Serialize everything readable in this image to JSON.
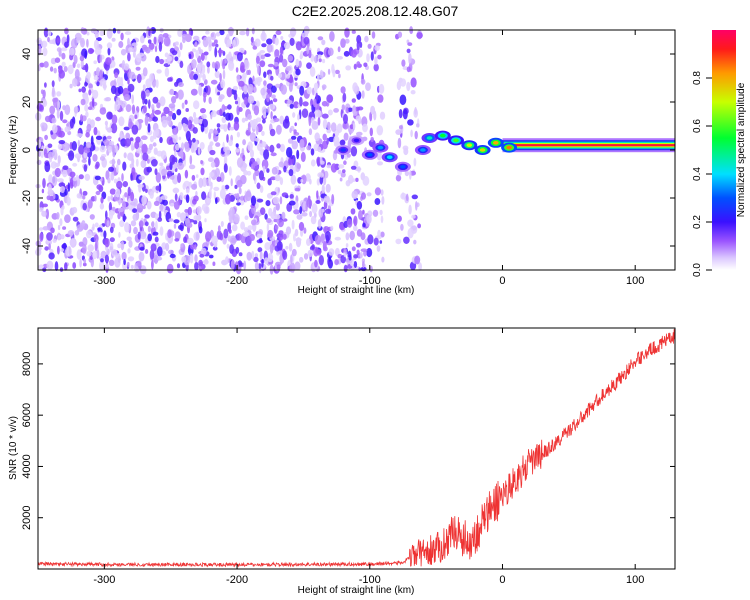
{
  "title": "C2E2.2025.208.12.48.G07",
  "chart_data": [
    {
      "type": "heatmap",
      "xlabel": "Height of straight line (km)",
      "ylabel": "Frequency (Hz)",
      "xlim": [
        -350,
        130
      ],
      "ylim": [
        -50,
        50
      ],
      "xticks": [
        "-300",
        "-200",
        "-100",
        "0",
        "100"
      ],
      "xtick_values": [
        -300,
        -200,
        -100,
        0,
        100
      ],
      "yticks": [
        "-40",
        "-20",
        "0",
        "20",
        "40"
      ],
      "ytick_values": [
        -40,
        -20,
        0,
        20,
        40
      ],
      "colorbar": {
        "label": "Normalized spectral amplitude",
        "range": [
          0,
          1
        ],
        "ticks": [
          "0.0",
          "0.2",
          "0.4",
          "0.6",
          "0.8"
        ],
        "tick_values": [
          0,
          0.2,
          0.4,
          0.6,
          0.8
        ],
        "colormap": "rainbow"
      },
      "features": {
        "noise_region_x": [
          -350,
          -62
        ],
        "signal_onset_x": -125,
        "stable_tone_x": [
          0,
          130
        ],
        "stable_tone_freq": 2,
        "stable_tone_amplitude": 0.95
      },
      "ridge": [
        {
          "x": -120,
          "f": 0,
          "a": 0.25
        },
        {
          "x": -110,
          "f": 4,
          "a": 0.2
        },
        {
          "x": -100,
          "f": -2,
          "a": 0.3
        },
        {
          "x": -92,
          "f": 1,
          "a": 0.35
        },
        {
          "x": -85,
          "f": -3,
          "a": 0.4
        },
        {
          "x": -75,
          "f": -7,
          "a": 0.3
        },
        {
          "x": -60,
          "f": 0,
          "a": 0.35
        },
        {
          "x": -55,
          "f": 5,
          "a": 0.45
        },
        {
          "x": -45,
          "f": 6,
          "a": 0.55
        },
        {
          "x": -35,
          "f": 4,
          "a": 0.6
        },
        {
          "x": -25,
          "f": 2,
          "a": 0.7
        },
        {
          "x": -15,
          "f": 0,
          "a": 0.75
        },
        {
          "x": -5,
          "f": 3,
          "a": 0.8
        },
        {
          "x": 5,
          "f": 1,
          "a": 0.85
        }
      ]
    },
    {
      "type": "line",
      "xlabel": "Height of straight line (km)",
      "ylabel": "SNR (10 * v/v)",
      "xlim": [
        -350,
        130
      ],
      "ylim": [
        0,
        9400
      ],
      "xticks": [
        "-300",
        "-200",
        "-100",
        "0",
        "100"
      ],
      "xtick_values": [
        -300,
        -200,
        -100,
        0,
        100
      ],
      "yticks": [
        "2000",
        "4000",
        "6000",
        "8000"
      ],
      "ytick_values": [
        2000,
        4000,
        6000,
        8000
      ],
      "series": [
        {
          "color": "#ee3333",
          "x": [
            -350,
            -300,
            -250,
            -200,
            -150,
            -100,
            -75,
            -65,
            -55,
            -45,
            -40,
            -35,
            -30,
            -25,
            -20,
            -15,
            -10,
            -5,
            0,
            10,
            20,
            30,
            40,
            50,
            60,
            70,
            80,
            90,
            100,
            110,
            120,
            130
          ],
          "y": [
            200,
            180,
            170,
            170,
            180,
            190,
            250,
            600,
            700,
            900,
            1300,
            1500,
            1200,
            1100,
            1300,
            1900,
            2200,
            2600,
            2900,
            3500,
            4100,
            4500,
            4900,
            5400,
            5900,
            6500,
            7000,
            7500,
            8100,
            8500,
            8800,
            9100
          ]
        }
      ]
    }
  ]
}
